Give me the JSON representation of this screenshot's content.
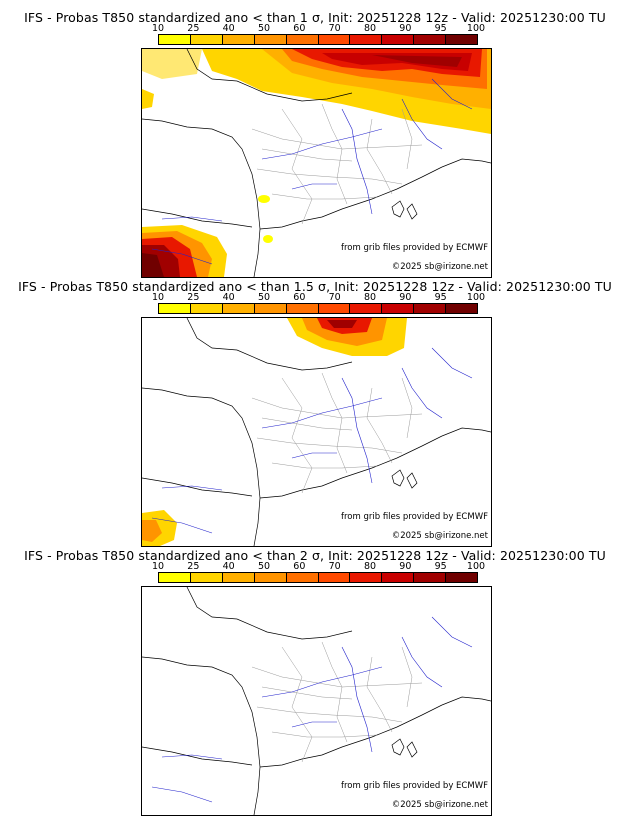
{
  "panels": [
    {
      "title": "IFS - Probas T850  standardized ano < than 1 σ, Init: 20251228 12z - Valid: 20251230:00 TU"
    },
    {
      "title": "IFS - Probas T850  standardized ano < than 1.5 σ, Init: 20251228 12z - Valid: 20251230:00 TU"
    },
    {
      "title": "IFS - Probas T850  standardized ano < than 2 σ, Init: 20251228 12z - Valid: 20251230:00 TU"
    }
  ],
  "colorbar": {
    "ticks": [
      "10",
      "25",
      "40",
      "50",
      "60",
      "70",
      "80",
      "90",
      "95",
      "100"
    ],
    "colors": [
      "#ffff00",
      "#ffd500",
      "#ffb000",
      "#ff9400",
      "#ff7000",
      "#ff4a00",
      "#e81800",
      "#c80000",
      "#a00000",
      "#700000"
    ]
  },
  "credits": {
    "source": "from grib files provided by ECMWF",
    "copyright": "©2025 sb@irizone.net"
  }
}
